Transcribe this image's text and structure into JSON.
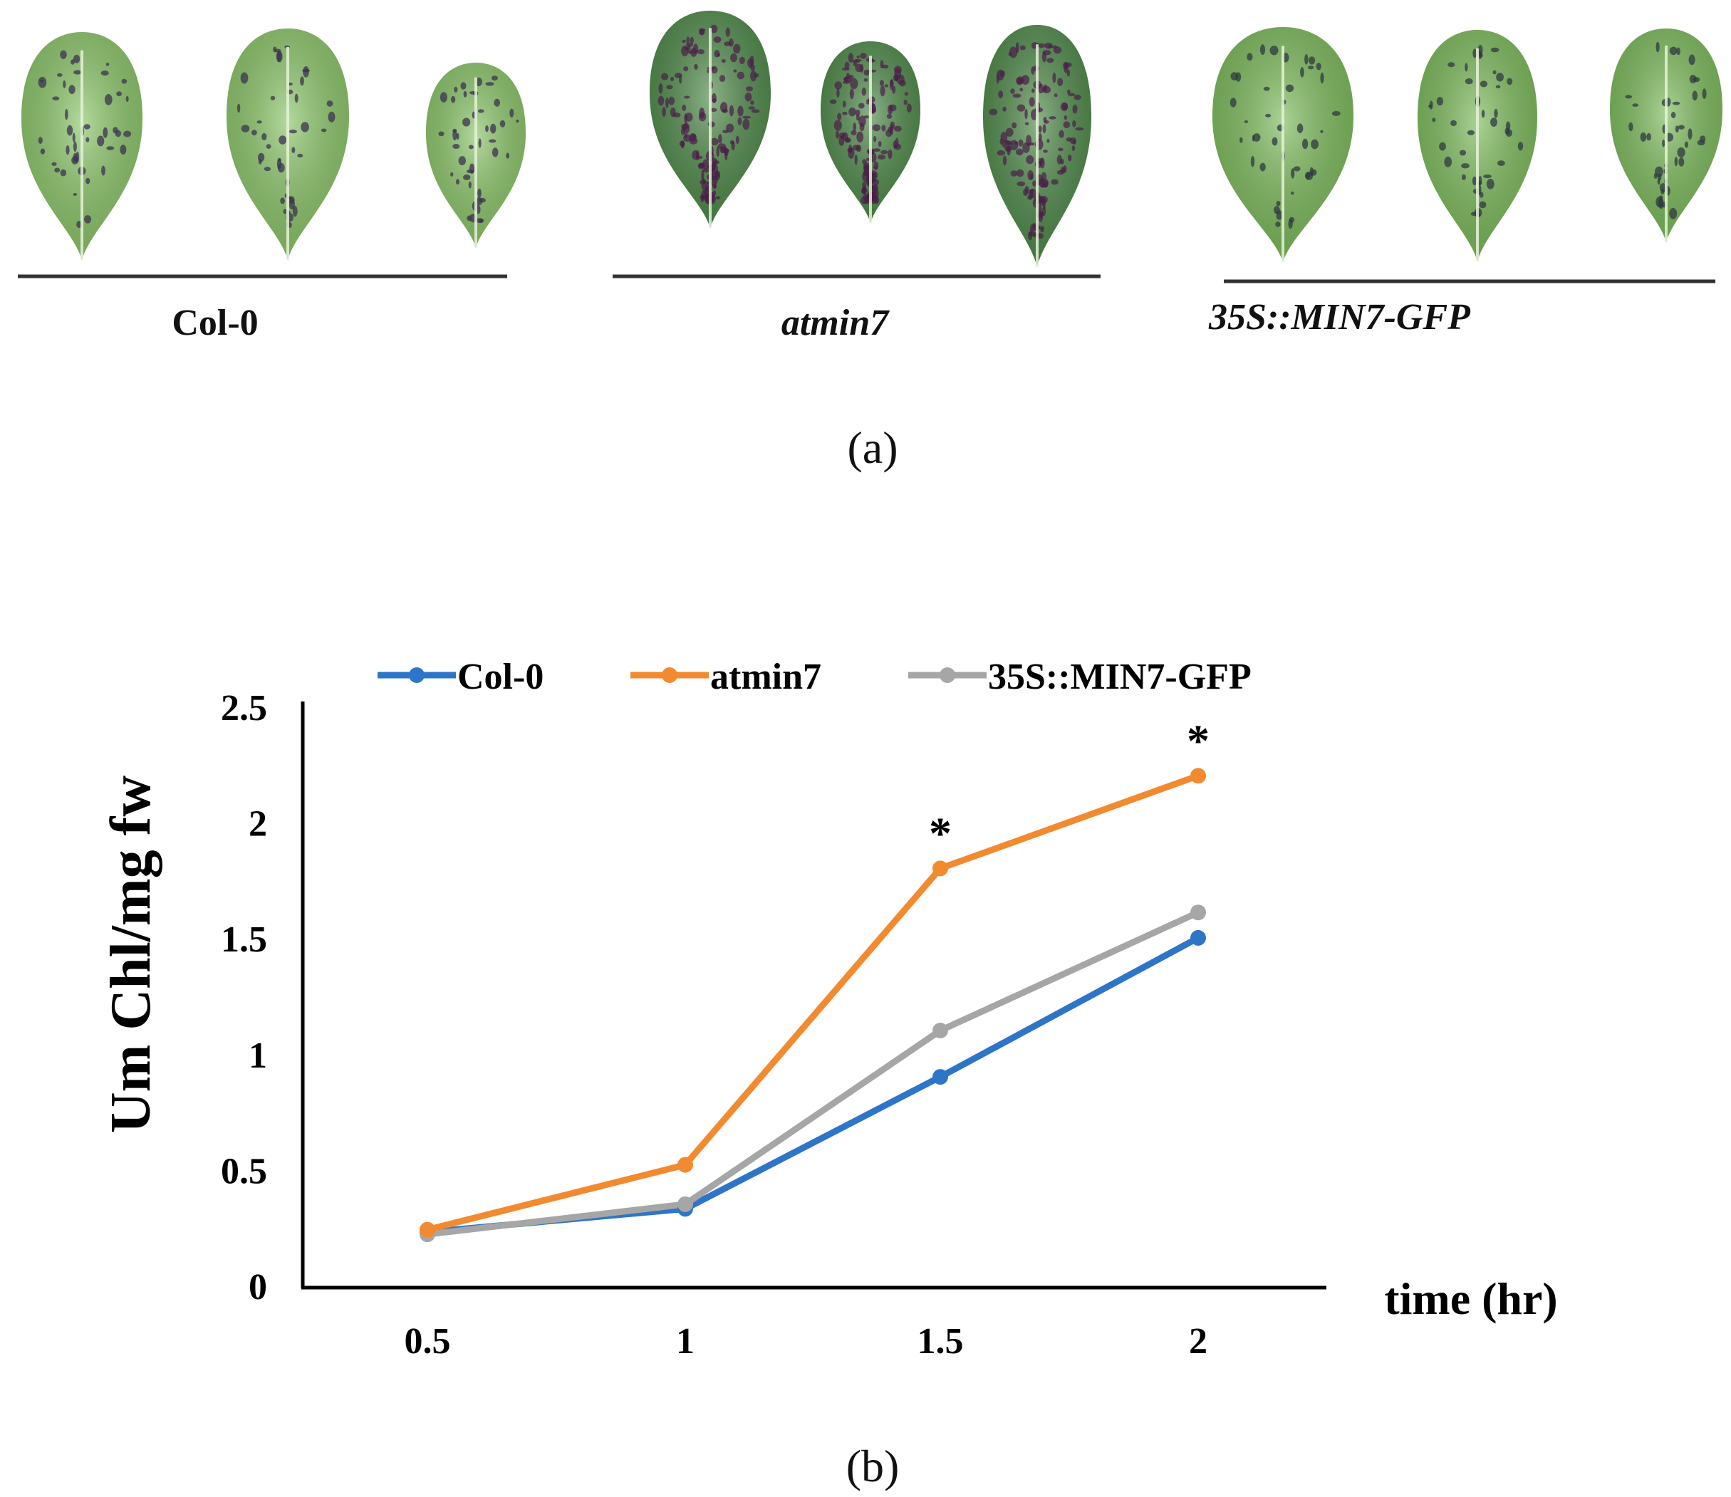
{
  "panel_a": {
    "label": "(a)",
    "groups": [
      {
        "name": "Col-0",
        "italic": false,
        "leaf_tone": "#8cc66a",
        "spot_color": "#3b3350"
      },
      {
        "name": "atmin7",
        "italic": true,
        "leaf_tone": "#4f8a4a",
        "spot_color": "#4a2048"
      },
      {
        "name": "35S::MIN7-GFP",
        "italic": true,
        "leaf_tone": "#7dbb5c",
        "spot_color": "#2f3a40"
      }
    ]
  },
  "panel_b": {
    "label": "(b)"
  },
  "chart_data": {
    "type": "line",
    "title": "",
    "xlabel": "time (hr)",
    "ylabel": "Um Chl/mg fw",
    "categories": [
      "0.5",
      "1",
      "1.5",
      "2"
    ],
    "yticks": [
      "0",
      "0.5",
      "1",
      "1.5",
      "2",
      "2.5"
    ],
    "ylim": [
      0,
      2.5
    ],
    "grid": false,
    "legend_position": "top",
    "series": [
      {
        "name": "Col-0",
        "color": "#2e75c8",
        "values": [
          0.24,
          0.34,
          0.91,
          1.51
        ]
      },
      {
        "name": "atmin7",
        "color": "#f28a30",
        "values": [
          0.25,
          0.53,
          1.81,
          2.21
        ]
      },
      {
        "name": "35S::MIN7-GFP",
        "color": "#a6a6a6",
        "values": [
          0.23,
          0.36,
          1.11,
          1.62
        ]
      }
    ],
    "annotations": [
      {
        "text": "*",
        "x": "1.5",
        "series": "atmin7"
      },
      {
        "text": "*",
        "x": "2",
        "series": "atmin7"
      }
    ]
  }
}
